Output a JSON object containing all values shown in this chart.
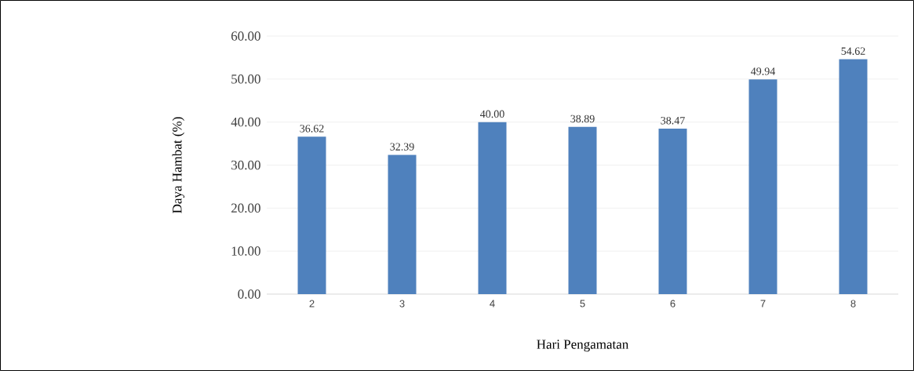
{
  "chart_data": {
    "type": "bar",
    "xlabel": "Hari Pengamatan",
    "ylabel": "Daya Hambat (%)",
    "categories": [
      "2",
      "3",
      "4",
      "5",
      "6",
      "7",
      "8"
    ],
    "values": [
      36.62,
      32.39,
      40.0,
      38.89,
      38.47,
      49.94,
      54.62
    ],
    "value_labels": [
      "36.62",
      "32.39",
      "40.00",
      "38.89",
      "38.47",
      "49.94",
      "54.62"
    ],
    "color": "#4f81bd",
    "ylim": [
      0,
      60
    ],
    "yticks": [
      {
        "value": 0,
        "label": "0.00"
      },
      {
        "value": 10,
        "label": "10.00"
      },
      {
        "value": 20,
        "label": "20.00"
      },
      {
        "value": 30,
        "label": "30.00"
      },
      {
        "value": 40,
        "label": "40.00"
      },
      {
        "value": 50,
        "label": "50.00"
      },
      {
        "value": 60,
        "label": "60.00"
      }
    ],
    "grid": "y"
  }
}
